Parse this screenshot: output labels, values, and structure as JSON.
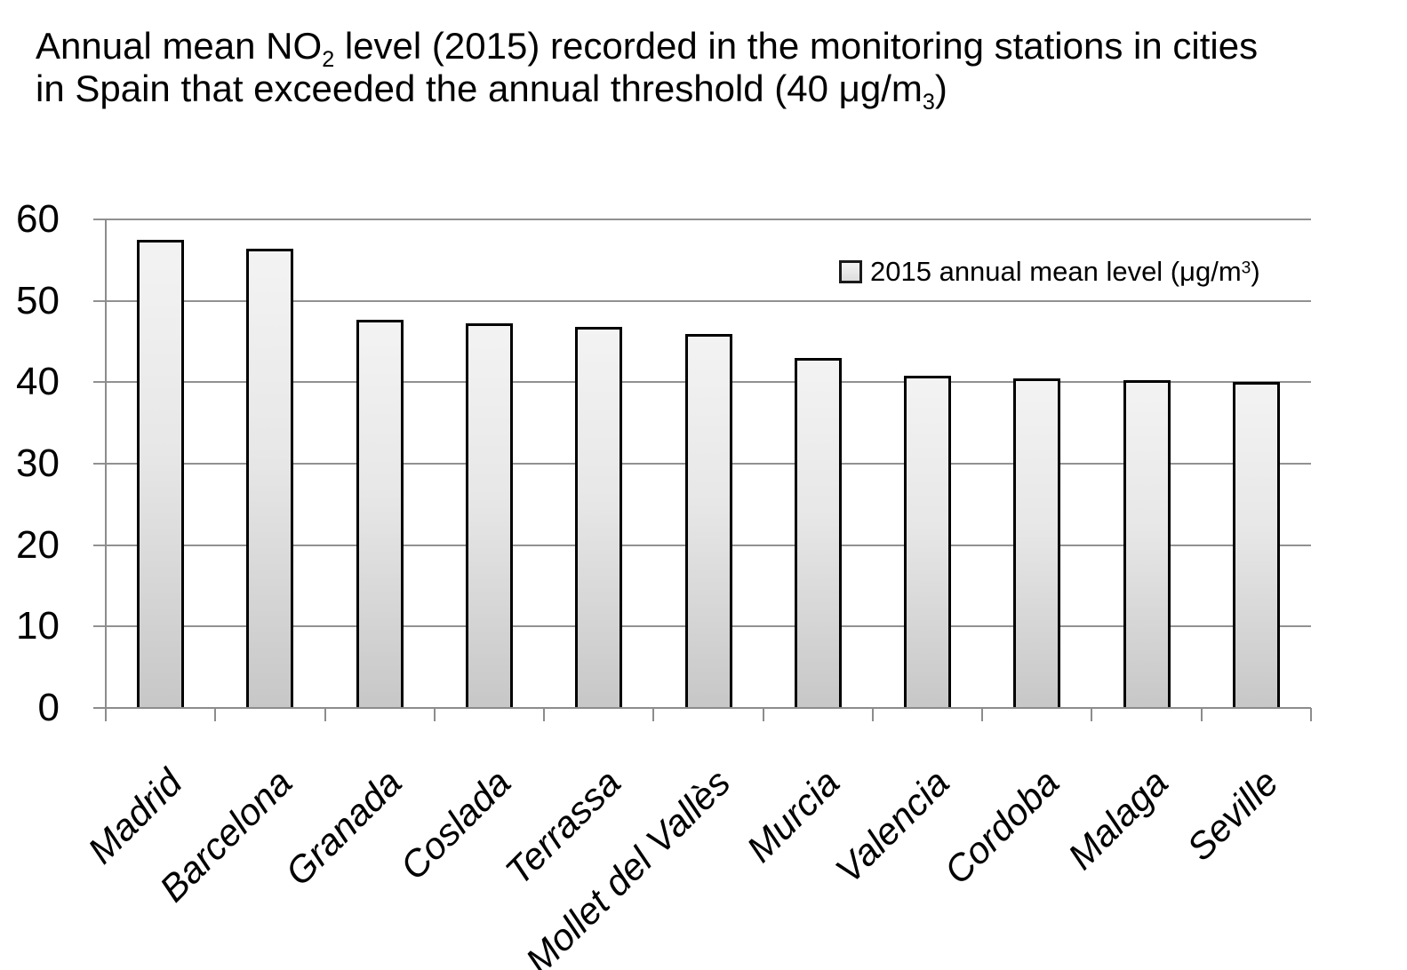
{
  "title": {
    "line1": {
      "pre": "Annual mean NO",
      "sub": "2",
      "post": " level (2015) recorded in the monitoring stations in cities"
    },
    "line2": {
      "pre": "in Spain that exceeded the annual threshold (40 μg/m",
      "sub": "3",
      "post": ")"
    }
  },
  "legend": {
    "pre": "2015 annual mean level (μg/m",
    "sup": "3",
    "post": ")"
  },
  "chart_data": {
    "type": "bar",
    "title": "Annual mean NO2 level (2015) recorded in the monitoring stations in cities in Spain that exceeded the annual threshold (40 μg/m3)",
    "categories": [
      "Madrid",
      "Barcelona",
      "Granada",
      "Coslada",
      "Terrassa",
      "Mollet del Vallès",
      "Murcia",
      "Valencia",
      "Cordoba",
      "Malaga",
      "Seville"
    ],
    "series": [
      {
        "name": "2015 annual mean level (μg/m³)",
        "values": [
          57.5,
          56.4,
          47.7,
          47.2,
          46.8,
          45.9,
          43.0,
          40.8,
          40.5,
          40.3,
          40.0
        ]
      }
    ],
    "xlabel": "",
    "ylabel": "",
    "ylim": [
      0,
      60
    ],
    "yticks": [
      0,
      10,
      20,
      30,
      40,
      50,
      60
    ],
    "grid": true,
    "legend_position": "top-right",
    "x_label_rotation_deg": -45,
    "x_label_style": "italic"
  },
  "colors": {
    "background": "#ffffff",
    "text": "#000000",
    "gridline": "#919191",
    "axis": "#8c8c8c",
    "bar_border": "#000000",
    "bar_fill_top": "#f3f3f3",
    "bar_fill_bottom": "#c7c7c7"
  }
}
